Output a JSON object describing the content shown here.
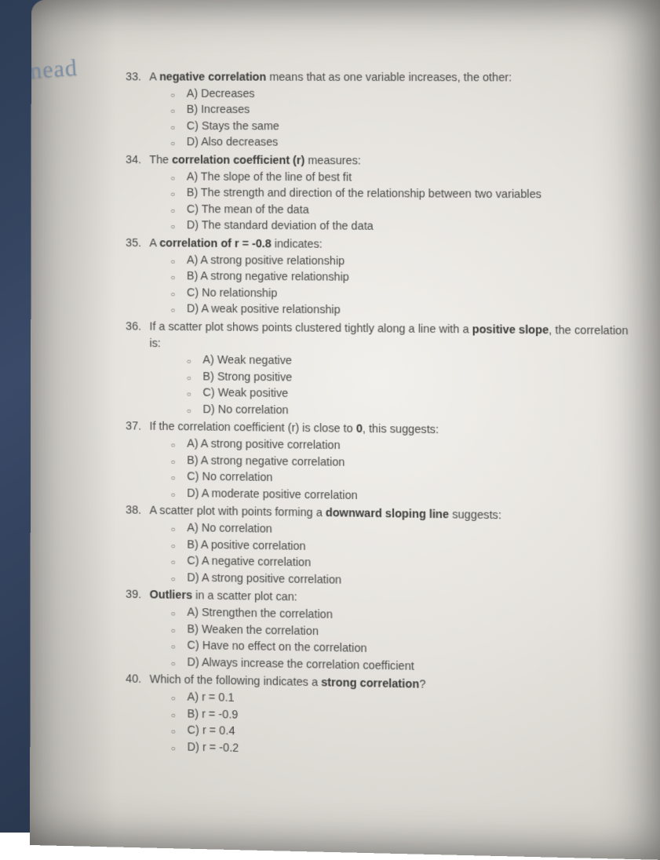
{
  "brand": "mead",
  "colors": {
    "backdrop_from": "#2d3d55",
    "backdrop_to": "#1a2638",
    "paper_hi": "#f2f0ec",
    "paper_lo": "#bab6af",
    "text": "#4a4a48",
    "bold": "#3b3b39"
  },
  "questions": [
    {
      "n": "33.",
      "pre": "A ",
      "bold": "negative correlation",
      "post": " means that as one variable increases, the other:",
      "opts": [
        "A) Decreases",
        "B) Increases",
        "C) Stays the same",
        "D) Also decreases"
      ]
    },
    {
      "n": "34.",
      "pre": "The ",
      "bold": "correlation coefficient (r)",
      "post": " measures:",
      "opts": [
        "A) The slope of the line of best fit",
        "B) The strength and direction of the relationship between two variables",
        "C) The mean of the data",
        "D) The standard deviation of the data"
      ]
    },
    {
      "n": "35.",
      "pre": "A ",
      "bold": "correlation of r = -0.8",
      "post": " indicates:",
      "opts": [
        "A) A strong positive relationship",
        "B) A strong negative relationship",
        "C) No relationship",
        "D) A weak positive relationship"
      ]
    },
    {
      "n": "36.",
      "pre": "If a scatter plot shows points clustered tightly along a line with a ",
      "bold": "positive slope",
      "post": ", the correlation",
      "sub": "is:",
      "opts": [
        "A) Weak negative",
        "B) Strong positive",
        "C) Weak positive",
        "D) No correlation"
      ],
      "opts_extra_indent": true
    },
    {
      "n": "37.",
      "pre": "If the correlation coefficient (r) is close to ",
      "bold": "0",
      "post": ", this suggests:",
      "opts": [
        "A) A strong positive correlation",
        "B) A strong negative correlation",
        "C) No correlation",
        "D) A moderate positive correlation"
      ]
    },
    {
      "n": "38.",
      "pre": "A scatter plot with points forming a ",
      "bold": "downward sloping line",
      "post": " suggests:",
      "opts": [
        "A) No correlation",
        "B) A positive correlation",
        "C) A negative correlation",
        "D) A strong positive correlation"
      ]
    },
    {
      "n": "39.",
      "pre": "",
      "bold": "Outliers",
      "post": " in a scatter plot can:",
      "opts": [
        "A) Strengthen the correlation",
        "B) Weaken the correlation",
        "C) Have no effect on the correlation",
        "D) Always increase the correlation coefficient"
      ]
    },
    {
      "n": "40.",
      "pre": "Which of the following indicates a ",
      "bold": "strong correlation",
      "post": "?",
      "opts": [
        "A) r = 0.1",
        "B) r = -0.9",
        "C) r = 0.4",
        "D) r = -0.2"
      ]
    }
  ]
}
